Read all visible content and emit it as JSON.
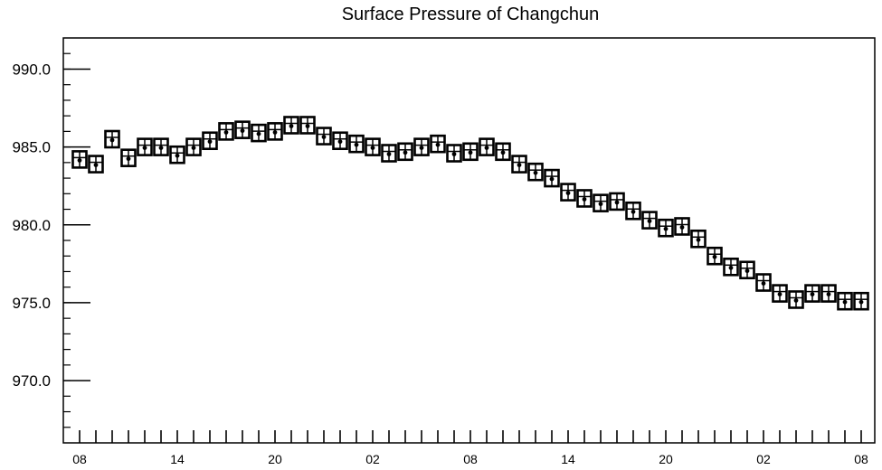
{
  "chart_data": {
    "type": "scatter",
    "title": "Surface Pressure of Changchun",
    "xlabel": "",
    "ylabel": "",
    "ylim": [
      966,
      992
    ],
    "yticks": [
      970.0,
      975.0,
      980.0,
      985.0,
      990.0
    ],
    "ytick_labels": [
      "970.0",
      "975.0",
      "980.0",
      "985.0",
      "990.0"
    ],
    "xlim": [
      0,
      49
    ],
    "xtick_labels": [
      {
        "index": 0,
        "label": "08"
      },
      {
        "index": 6,
        "label": "14"
      },
      {
        "index": 12,
        "label": "20"
      },
      {
        "index": 18,
        "label": "02"
      },
      {
        "index": 24,
        "label": "08"
      },
      {
        "index": 30,
        "label": "14"
      },
      {
        "index": 36,
        "label": "20"
      },
      {
        "index": 42,
        "label": "02"
      },
      {
        "index": 48,
        "label": "08"
      }
    ],
    "x_unit": "hour",
    "marker": "boxed-cross",
    "grid": false,
    "values": [
      984.2,
      983.9,
      985.5,
      984.3,
      985.0,
      985.0,
      984.5,
      985.0,
      985.4,
      986.0,
      986.1,
      985.9,
      986.0,
      986.4,
      986.4,
      985.7,
      985.4,
      985.2,
      985.0,
      984.6,
      984.7,
      985.0,
      985.2,
      984.6,
      984.7,
      985.0,
      984.7,
      983.9,
      983.4,
      983.0,
      982.1,
      981.7,
      981.4,
      981.5,
      980.9,
      980.3,
      979.8,
      979.9,
      979.1,
      978.0,
      977.3,
      977.1,
      976.3,
      975.6,
      975.2,
      975.6,
      975.6,
      975.1,
      975.1
    ]
  }
}
